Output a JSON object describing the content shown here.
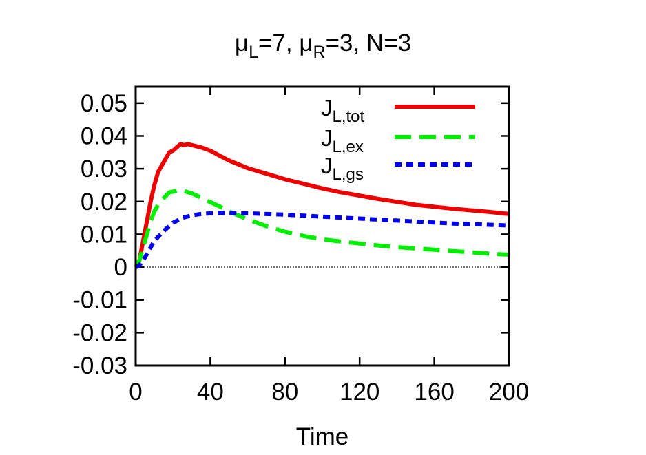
{
  "chart_data": {
    "type": "line",
    "title": {
      "mu1": "μ",
      "sub1": "L",
      "eq1": "=7, ",
      "mu2": "μ",
      "sub2": "R",
      "eq2": "=3, N=3"
    },
    "xlabel": "Time",
    "ylabel": "",
    "xlim": [
      0,
      200
    ],
    "ylim": [
      -0.03,
      0.055
    ],
    "xticks": [
      0,
      40,
      80,
      120,
      160,
      200
    ],
    "xtick_labels": [
      "0",
      "40",
      "80",
      "120",
      "160",
      "200"
    ],
    "yticks": [
      -0.03,
      -0.02,
      -0.01,
      0,
      0.01,
      0.02,
      0.03,
      0.04,
      0.05
    ],
    "ytick_labels": [
      "-0.03",
      "-0.02",
      "-0.01",
      "0",
      "0.01",
      "0.02",
      "0.03",
      "0.04",
      "0.05"
    ],
    "zero_line": true,
    "legend_position": "top-right",
    "series": [
      {
        "name": "J_L,tot",
        "label_main": "J",
        "label_sub": "L,tot",
        "color": "#ee0000",
        "dash": "solid",
        "x": [
          0,
          2,
          5,
          8,
          10,
          12,
          15,
          18,
          20,
          22,
          24,
          26,
          28,
          30,
          35,
          40,
          45,
          50,
          60,
          70,
          80,
          90,
          100,
          110,
          120,
          130,
          140,
          150,
          160,
          170,
          180,
          190,
          200
        ],
        "y": [
          0,
          0.002,
          0.011,
          0.02,
          0.025,
          0.029,
          0.032,
          0.035,
          0.0355,
          0.0365,
          0.0375,
          0.0372,
          0.0375,
          0.0372,
          0.0365,
          0.0355,
          0.034,
          0.0325,
          0.0302,
          0.0285,
          0.0268,
          0.0254,
          0.024,
          0.0228,
          0.0218,
          0.0208,
          0.0199,
          0.019,
          0.0184,
          0.0178,
          0.0173,
          0.0168,
          0.0162
        ]
      },
      {
        "name": "J_L,ex",
        "label_main": "J",
        "label_sub": "L,ex",
        "color": "#00ee00",
        "dash": "dashed",
        "x": [
          0,
          2,
          5,
          8,
          10,
          12,
          15,
          18,
          20,
          22,
          25,
          28,
          30,
          35,
          40,
          45,
          50,
          55,
          60,
          70,
          80,
          90,
          100,
          110,
          120,
          130,
          140,
          150,
          160,
          170,
          180,
          190,
          200
        ],
        "y": [
          0,
          0.002,
          0.008,
          0.014,
          0.017,
          0.019,
          0.021,
          0.0228,
          0.023,
          0.0233,
          0.0235,
          0.0228,
          0.0225,
          0.0212,
          0.0198,
          0.0185,
          0.017,
          0.0158,
          0.0146,
          0.0125,
          0.0108,
          0.0095,
          0.0085,
          0.0078,
          0.0072,
          0.0066,
          0.0061,
          0.0057,
          0.0053,
          0.0049,
          0.0045,
          0.0041,
          0.0038
        ]
      },
      {
        "name": "J_L,gs",
        "label_main": "J",
        "label_sub": "L,gs",
        "color": "#0000ee",
        "dash": "dotted",
        "x": [
          0,
          2,
          5,
          8,
          10,
          15,
          20,
          25,
          30,
          35,
          40,
          45,
          50,
          60,
          70,
          80,
          90,
          100,
          110,
          120,
          130,
          140,
          150,
          160,
          170,
          180,
          190,
          200
        ],
        "y": [
          0,
          0.0005,
          0.003,
          0.006,
          0.008,
          0.011,
          0.0135,
          0.015,
          0.0158,
          0.0162,
          0.0164,
          0.0165,
          0.0165,
          0.0164,
          0.0162,
          0.016,
          0.0157,
          0.0154,
          0.0151,
          0.0148,
          0.0145,
          0.0142,
          0.0139,
          0.0136,
          0.0133,
          0.0131,
          0.0129,
          0.0127
        ]
      }
    ]
  }
}
